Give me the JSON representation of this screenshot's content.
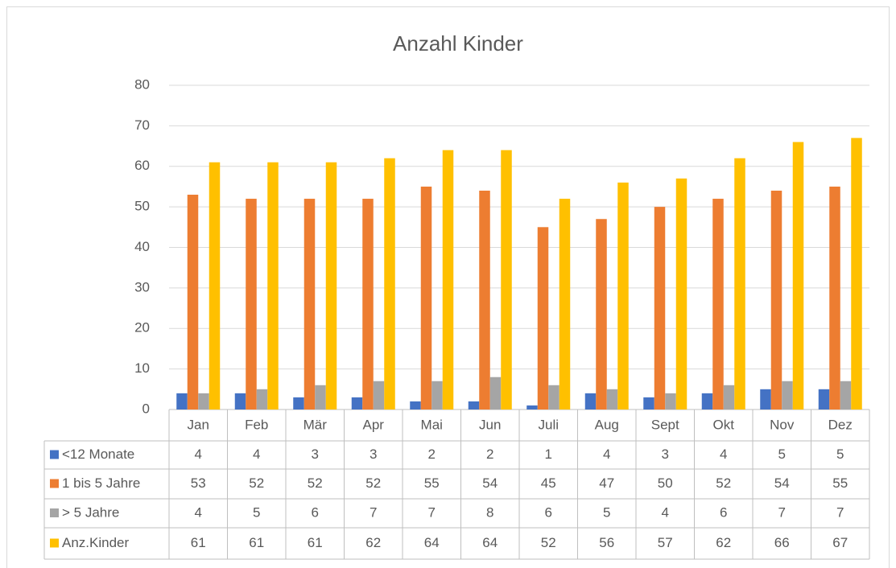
{
  "chart_data": {
    "type": "bar",
    "title": "Anzahl Kinder",
    "categories": [
      "Jan",
      "Feb",
      "Mär",
      "Apr",
      "Mai",
      "Jun",
      "Juli",
      "Aug",
      "Sept",
      "Okt",
      "Nov",
      "Dez"
    ],
    "series": [
      {
        "name": "<12 Monate",
        "color": "#4472c4",
        "values": [
          4,
          4,
          3,
          3,
          2,
          2,
          1,
          4,
          3,
          4,
          5,
          5
        ]
      },
      {
        "name": "1 bis 5 Jahre",
        "color": "#ed7d31",
        "values": [
          53,
          52,
          52,
          52,
          55,
          54,
          45,
          47,
          50,
          52,
          54,
          55
        ]
      },
      {
        "name": "> 5 Jahre",
        "color": "#a5a5a5",
        "values": [
          4,
          5,
          6,
          7,
          7,
          8,
          6,
          5,
          4,
          6,
          7,
          7
        ]
      },
      {
        "name": "Anz.Kinder",
        "color": "#ffc000",
        "values": [
          61,
          61,
          61,
          62,
          64,
          64,
          52,
          56,
          57,
          62,
          66,
          67
        ]
      }
    ],
    "ylim": [
      0,
      80
    ],
    "yticks": [
      0,
      10,
      20,
      30,
      40,
      50,
      60,
      70,
      80
    ],
    "grid": true
  }
}
